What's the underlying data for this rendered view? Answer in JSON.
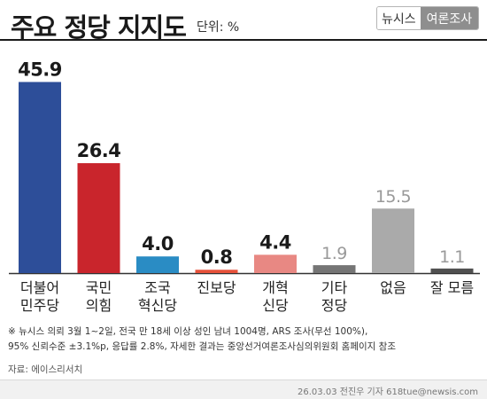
{
  "header": {
    "title": "주요 정당 지지도",
    "unit": "단위: %",
    "brand_left": "뉴시스",
    "brand_right": "여론조사"
  },
  "colors": {
    "더불어민주당": "#2d4e99",
    "국민의힘": "#c9252c",
    "조국혁신당": "#2a8cc4",
    "진보당": "#e6513a",
    "개혁신당": "#e88883",
    "기타정당": "#757575",
    "없음": "#aaaaaa",
    "잘 모름": "#505050",
    "baseline": "#333333",
    "dark_value": "#1a1a1a",
    "light_value": "#999999"
  },
  "chart_data": {
    "type": "bar",
    "categories": [
      "더불어민주당",
      "국민의힘",
      "조국혁신당",
      "진보당",
      "개혁신당",
      "기타정당",
      "없음",
      "잘 모름"
    ],
    "label_lines": [
      [
        "더불어",
        "민주당"
      ],
      [
        "국민",
        "의힘"
      ],
      [
        "조국",
        "혁신당"
      ],
      [
        "진보당"
      ],
      [
        "개혁",
        "신당"
      ],
      [
        "기타",
        "정당"
      ],
      [
        "없음"
      ],
      [
        "잘 모름"
      ]
    ],
    "values": [
      45.9,
      26.4,
      4.0,
      0.8,
      4.4,
      1.9,
      15.5,
      1.1
    ],
    "value_labels": [
      "45.9",
      "26.4",
      "4.0",
      "0.8",
      "4.4",
      "1.9",
      "15.5",
      "1.1"
    ],
    "value_emphasis": [
      true,
      true,
      true,
      true,
      true,
      false,
      false,
      false
    ],
    "ylim": [
      0,
      46
    ]
  },
  "notes": {
    "line1": "※ 뉴시스 의뢰 3월 1~2일, 전국 만 18세 이상 성인 남녀 1004명, ARS 조사(무선 100%),",
    "line2": "95% 신뢰수준 ±3.1%p, 응답률 2.8%, 자세한 결과는 중앙선거여론조사심의위원회 홈페이지 참조"
  },
  "source": "자료: 에이스리서치",
  "credit": "26.03.03 전진우 기자 618tue@newsis.com"
}
